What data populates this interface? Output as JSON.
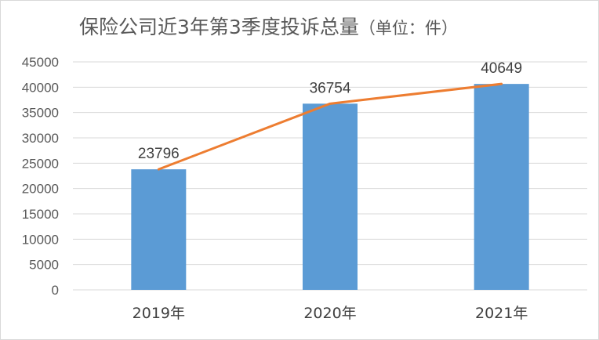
{
  "chart_data": {
    "type": "bar",
    "title": "保险公司近3年第3季度投诉总量",
    "subtitle": "（单位：件）",
    "xlabel": "",
    "ylabel": "",
    "categories": [
      "2019年",
      "2020年",
      "2021年"
    ],
    "series": [
      {
        "type": "bar",
        "values": [
          23796,
          36754,
          40649
        ]
      },
      {
        "type": "line",
        "values": [
          23796,
          36754,
          40649
        ]
      }
    ],
    "data_labels": [
      "23796",
      "36754",
      "40649"
    ],
    "y_ticks": [
      "0",
      "5000",
      "10000",
      "15000",
      "20000",
      "25000",
      "30000",
      "35000",
      "40000",
      "45000"
    ],
    "ylim": [
      0,
      45000
    ],
    "grid": true,
    "legend": "none",
    "colors": {
      "bar": "#5b9bd5",
      "line": "#ed7d31",
      "grid": "#d9d9d9"
    }
  }
}
